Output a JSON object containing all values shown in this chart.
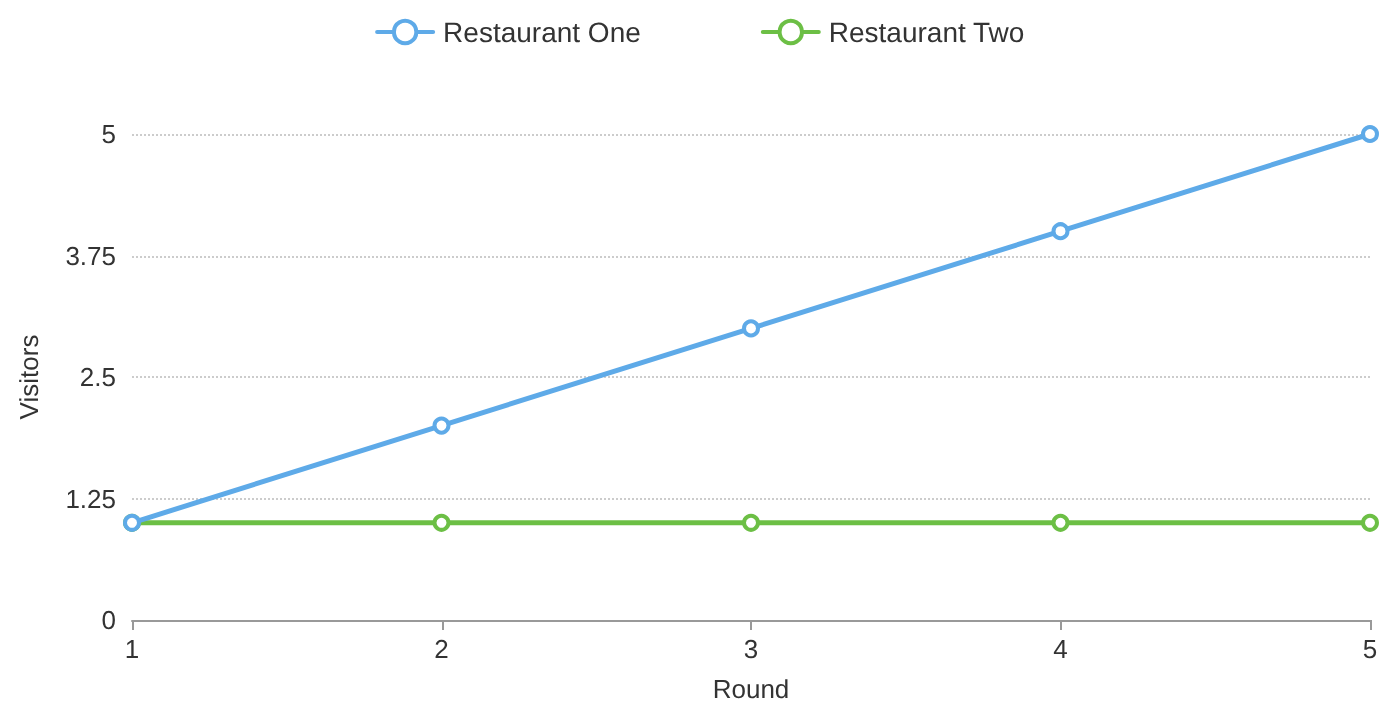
{
  "chart_data": {
    "type": "line",
    "xlabel": "Round",
    "ylabel": "Visitors",
    "x": [
      1,
      2,
      3,
      4,
      5
    ],
    "series": [
      {
        "name": "Restaurant One",
        "color": "#5eaae8",
        "values": [
          1,
          2,
          3,
          4,
          5
        ]
      },
      {
        "name": "Restaurant Two",
        "color": "#6cbf45",
        "values": [
          1,
          1,
          1,
          1,
          1
        ]
      }
    ],
    "xlim": [
      1,
      5
    ],
    "xticks": [
      1,
      2,
      3,
      4,
      5
    ],
    "ylim": [
      0,
      5
    ],
    "yticks": [
      0,
      1.25,
      2.5,
      3.75,
      5
    ],
    "grid": "y",
    "legend": "top",
    "marker": "circle",
    "line_style": "solid"
  }
}
